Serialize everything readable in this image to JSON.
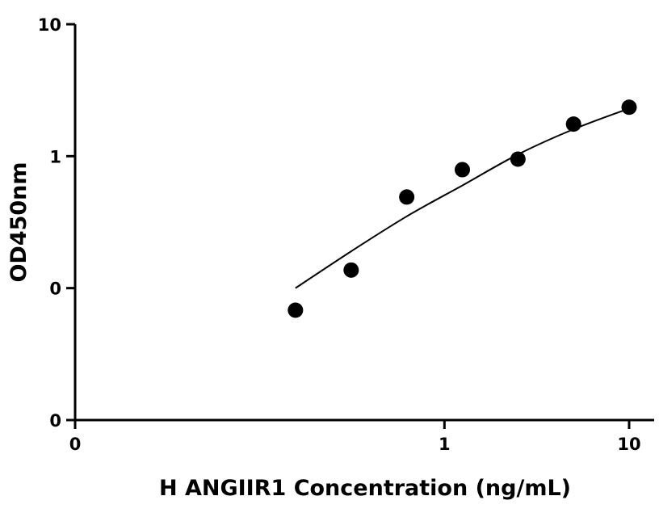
{
  "chart_data": {
    "type": "scatter",
    "title": "",
    "xlabel": "H ANGIIR1 Concentration (ng/mL)",
    "ylabel": "OD450nm",
    "x_scale": "log",
    "y_scale": "log",
    "xlim": [
      0.01,
      10
    ],
    "ylim": [
      0.01,
      10
    ],
    "x_ticks": [
      {
        "value": 0.01,
        "label": "0"
      },
      {
        "value": 1,
        "label": "1"
      },
      {
        "value": 10,
        "label": "10"
      }
    ],
    "y_ticks": [
      {
        "value": 0.01,
        "label": "0"
      },
      {
        "value": 0.1,
        "label": "0"
      },
      {
        "value": 1,
        "label": "1"
      },
      {
        "value": 10,
        "label": "10"
      }
    ],
    "grid": false,
    "legend": "none",
    "series": [
      {
        "x": [
          0.156,
          0.3125,
          0.625,
          1.25,
          2.5,
          5,
          10
        ],
        "y": [
          0.068,
          0.137,
          0.49,
          0.79,
          0.95,
          1.75,
          2.35
        ]
      }
    ],
    "fit_curve": {
      "x": [
        0.156,
        0.3125,
        0.625,
        1.25,
        2.5,
        5,
        10
      ],
      "y": [
        0.1,
        0.19,
        0.35,
        0.6,
        1.03,
        1.6,
        2.3
      ]
    },
    "colors": {
      "points": "#000000",
      "axes": "#000000",
      "curve": "#000000"
    }
  }
}
